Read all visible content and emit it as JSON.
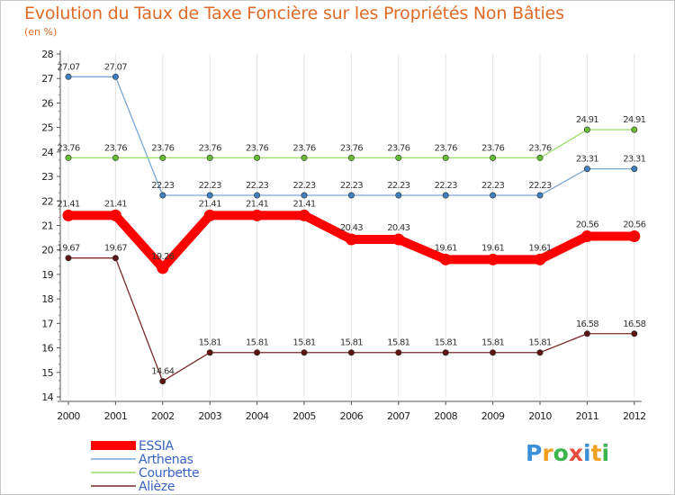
{
  "chart_data": {
    "type": "line",
    "title": "Evolution du Taux de Taxe Foncière sur les Propriétés Non Bâties",
    "ylabel": "(en %)",
    "xlabel": "",
    "categories": [
      "2000",
      "2001",
      "2002",
      "2003",
      "2004",
      "2005",
      "2006",
      "2007",
      "2008",
      "2009",
      "2010",
      "2011",
      "2012"
    ],
    "ylim": [
      14,
      28
    ],
    "yticks": [
      "14",
      "15",
      "16",
      "17",
      "18",
      "19",
      "20",
      "21",
      "22",
      "23",
      "24",
      "25",
      "26",
      "27",
      "28"
    ],
    "grid": "vertical",
    "legend_position": "bottom-left",
    "series": [
      {
        "name": "ESSIA",
        "color": "#ff0000",
        "marker_color": "#ff0000",
        "emphasis": "thick",
        "values": [
          21.41,
          21.41,
          19.26,
          21.41,
          21.41,
          21.41,
          20.43,
          20.43,
          19.61,
          19.61,
          19.61,
          20.56,
          20.56
        ],
        "labels": [
          "21.41",
          "21.41",
          "19.26",
          "21.41",
          "21.41",
          "21.41",
          "20.43",
          "20.43",
          "19.61",
          "19.61",
          "19.61",
          "20.56",
          "20.56"
        ]
      },
      {
        "name": "Arthenas",
        "color": "#79a8d8",
        "marker_color": "#3f7fbf",
        "emphasis": "thin",
        "values": [
          27.07,
          27.07,
          22.23,
          22.23,
          22.23,
          22.23,
          22.23,
          22.23,
          22.23,
          22.23,
          22.23,
          23.31,
          23.31
        ],
        "labels": [
          "27.07",
          "27.07",
          "22.23",
          "22.23",
          "22.23",
          "22.23",
          "22.23",
          "22.23",
          "22.23",
          "22.23",
          "22.23",
          "23.31",
          "23.31"
        ]
      },
      {
        "name": "Courbette",
        "color": "#99dd66",
        "marker_color": "#66bb33",
        "emphasis": "thin",
        "values": [
          23.76,
          23.76,
          23.76,
          23.76,
          23.76,
          23.76,
          23.76,
          23.76,
          23.76,
          23.76,
          23.76,
          24.91,
          24.91
        ],
        "labels": [
          "23.76",
          "23.76",
          "23.76",
          "23.76",
          "23.76",
          "23.76",
          "23.76",
          "23.76",
          "23.76",
          "23.76",
          "23.76",
          "24.91",
          "24.91"
        ]
      },
      {
        "name": "Alièze",
        "color": "#7a2a2a",
        "marker_color": "#5c1414",
        "emphasis": "thin",
        "values": [
          19.67,
          19.67,
          14.64,
          15.81,
          15.81,
          15.81,
          15.81,
          15.81,
          15.81,
          15.81,
          15.81,
          16.58,
          16.58
        ],
        "labels": [
          "19.67",
          "19.67",
          "14.64",
          "15.81",
          "15.81",
          "15.81",
          "15.81",
          "15.81",
          "15.81",
          "15.81",
          "15.81",
          "16.58",
          "16.58"
        ]
      }
    ]
  },
  "logo": {
    "letters": [
      "P",
      "r",
      "o",
      "x",
      "i",
      "t",
      "i"
    ],
    "colors": [
      "#3a8fd6",
      "#f0a020",
      "#3ab54a",
      "#e84c3d",
      "#3a8fd6",
      "#f0a020",
      "#3ab54a"
    ]
  }
}
